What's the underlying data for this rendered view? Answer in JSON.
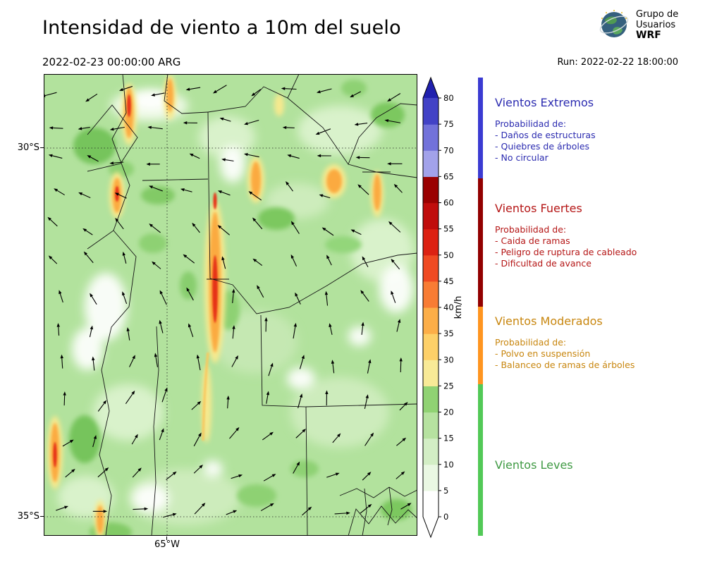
{
  "header": {
    "title": "Intensidad de viento a 10m del suelo",
    "valid_datetime": "2022-02-23 00:00:00 ARG",
    "run_label": "Run: 2022-02-22 18:00:00"
  },
  "logo": {
    "line1": "Grupo de",
    "line2": "Usuarios",
    "line3": "WRF"
  },
  "map": {
    "lat_top": "30°S",
    "lat_bottom": "35°S",
    "lon": "65°W"
  },
  "colorbar": {
    "unit": "km/h",
    "ticks": [
      "0",
      "5",
      "10",
      "15",
      "20",
      "25",
      "30",
      "35",
      "40",
      "45",
      "50",
      "55",
      "60",
      "65",
      "70",
      "75",
      "80"
    ],
    "segment_colors": [
      "#ffffff",
      "#eaf8e3",
      "#d3eec5",
      "#b6e2a0",
      "#90d273",
      "#f8ea97",
      "#fdd068",
      "#fcae48",
      "#f87c34",
      "#ef4a22",
      "#dc2112",
      "#c00d0c",
      "#9a0101",
      "#a2a2ea",
      "#7272da",
      "#4242c6"
    ],
    "under_color": "#ffffff",
    "over_color": "#2020ae"
  },
  "legend": {
    "sections": [
      {
        "id": "extremos",
        "title": "Vientos Extremos",
        "strip_color": "#3b3bd2",
        "text_color": "#2b2bb0",
        "prob_label": "Probabilidad de:",
        "items": [
          "- Daños de estructuras",
          "- Quiebres de árboles",
          "- No circular"
        ]
      },
      {
        "id": "fuertes",
        "title": "Vientos Fuertes",
        "strip_color": "#920000",
        "text_color": "#b51616",
        "prob_label": "Probabilidad de:",
        "items": [
          "- Caida de ramas",
          "- Peligro de ruptura de cableado",
          "- Dificultad de avance"
        ]
      },
      {
        "id": "moderados",
        "title": "Vientos Moderados",
        "strip_color": "#ff9520",
        "text_color": "#c8860e",
        "prob_label": "Probabilidad de:",
        "items": [
          "- Polvo en suspensión",
          "- Balanceo de ramas de árboles"
        ]
      },
      {
        "id": "leves",
        "title": "Vientos Leves",
        "strip_color": "#52c957",
        "text_color": "#3f9a43",
        "prob_label": "",
        "items": []
      }
    ]
  }
}
